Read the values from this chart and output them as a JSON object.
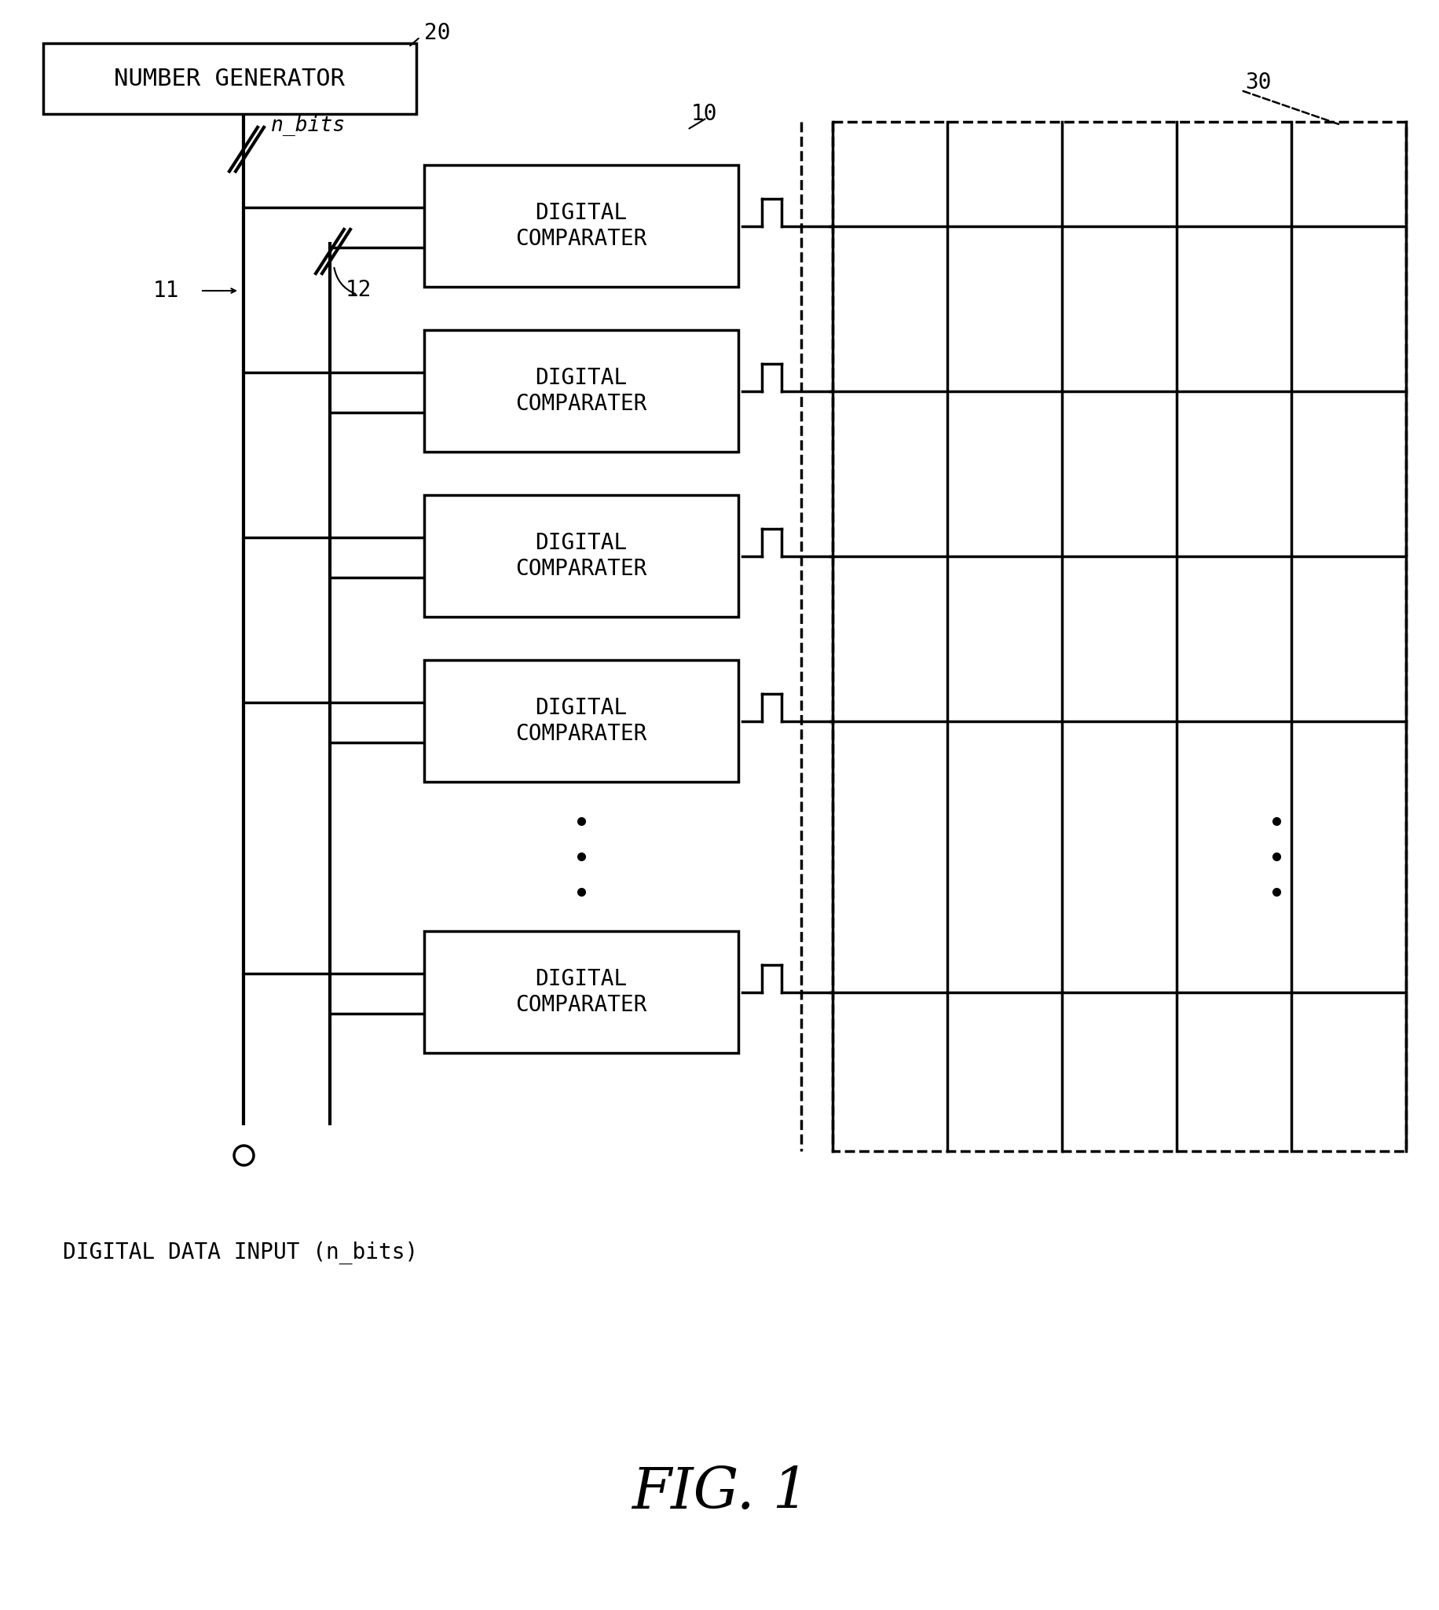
{
  "fig_width": 18.33,
  "fig_height": 20.49,
  "bg_color": "#ffffff",
  "line_color": "#000000",
  "label_20": "20",
  "label_30": "30",
  "label_10": "10",
  "label_11": "11",
  "label_12": "12",
  "label_n_bits": "n_bits",
  "label_number_generator": "NUMBER GENERATOR",
  "label_digital_comparater": [
    "DIGITAL\nCOMPARATER",
    "DIGITAL\nCOMPARATER",
    "DIGITAL\nCOMPARATER",
    "DIGITAL\nCOMPARATER",
    "DIGITAL\nCOMPARATER"
  ],
  "label_digital_data_input": "DIGITAL DATA INPUT (n_bits)",
  "label_fig": "FIG. 1"
}
